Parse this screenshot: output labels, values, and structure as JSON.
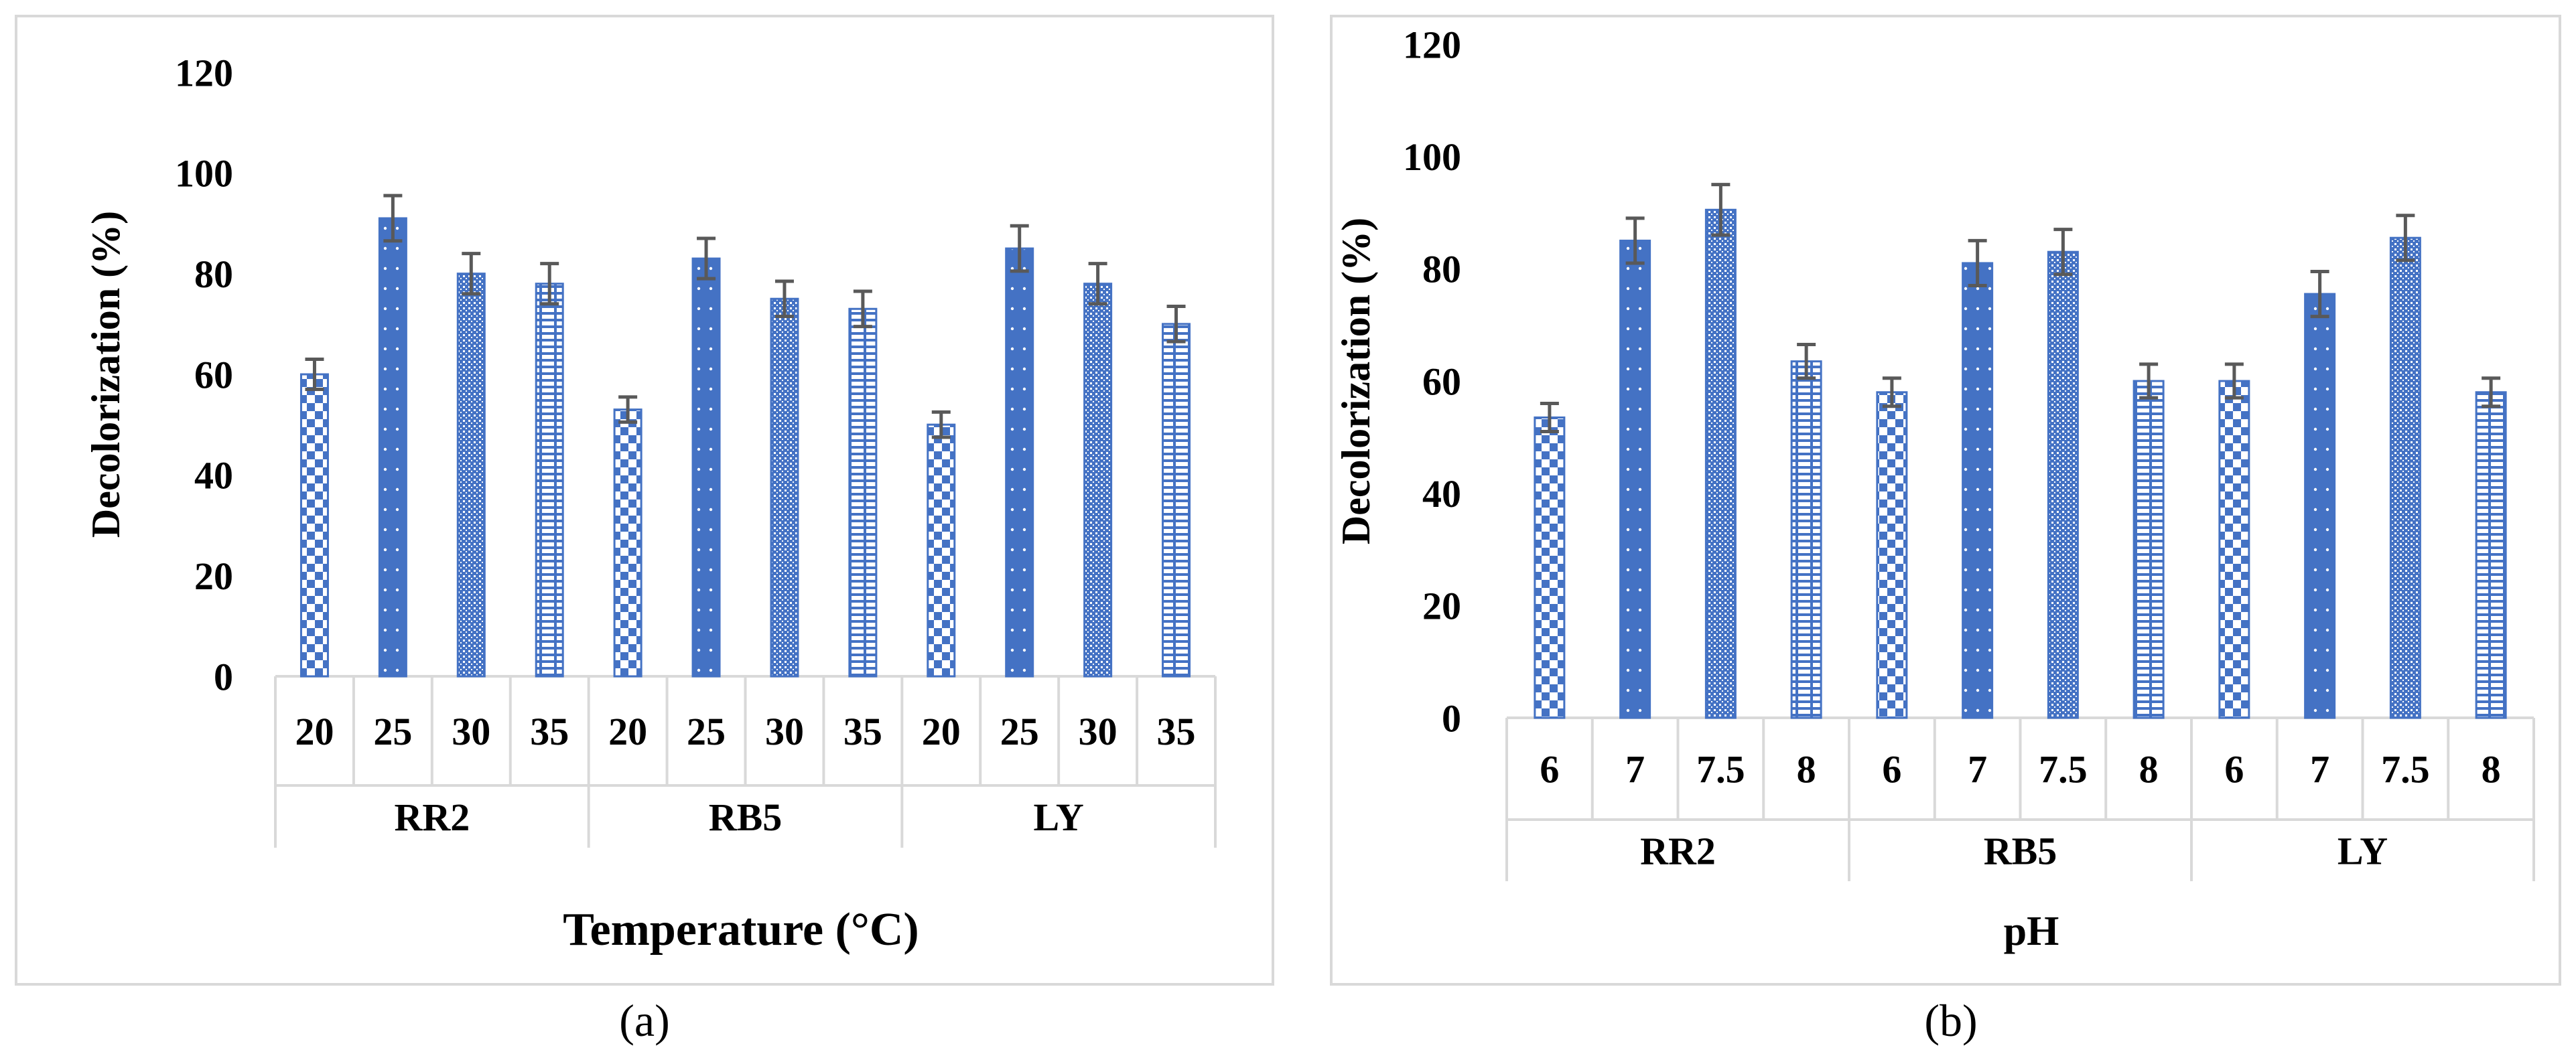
{
  "chart_data": [
    {
      "type": "bar",
      "panel_label": "(a)",
      "title": "",
      "xlabel": "Temperature (°C)",
      "ylabel": "Decolorization (%)",
      "ylim": [
        0,
        120
      ],
      "yticks": [
        0,
        20,
        40,
        60,
        80,
        100,
        120
      ],
      "grid": false,
      "groups": [
        {
          "name": "RR2",
          "categories": [
            "20",
            "25",
            "30",
            "35"
          ],
          "values": [
            60,
            91,
            80,
            78
          ],
          "errors": [
            3,
            4.5,
            4,
            4
          ]
        },
        {
          "name": "RB5",
          "categories": [
            "20",
            "25",
            "30",
            "35"
          ],
          "values": [
            53,
            83,
            75,
            73
          ],
          "errors": [
            2.5,
            4,
            3.5,
            3.5
          ]
        },
        {
          "name": "LY",
          "categories": [
            "20",
            "25",
            "30",
            "35"
          ],
          "values": [
            50,
            85,
            78,
            70
          ],
          "errors": [
            2.5,
            4.5,
            4,
            3.5
          ]
        }
      ],
      "patterns": [
        "checker",
        "dots",
        "mesh",
        "brick"
      ]
    },
    {
      "type": "bar",
      "panel_label": "(b)",
      "title": "",
      "xlabel": "pH",
      "ylabel": "Decolorization (%)",
      "ylim": [
        0,
        120
      ],
      "yticks": [
        0,
        20,
        40,
        60,
        80,
        100,
        120
      ],
      "grid": false,
      "groups": [
        {
          "name": "RR2",
          "categories": [
            "6",
            "7",
            "7.5",
            "8"
          ],
          "values": [
            53.5,
            85,
            90.5,
            63.5
          ],
          "errors": [
            2.5,
            4,
            4.5,
            3
          ]
        },
        {
          "name": "RB5",
          "categories": [
            "6",
            "7",
            "7.5",
            "8"
          ],
          "values": [
            58,
            81,
            83,
            60
          ],
          "errors": [
            2.5,
            4,
            4,
            3
          ]
        },
        {
          "name": "LY",
          "categories": [
            "6",
            "7",
            "7.5",
            "8"
          ],
          "values": [
            60,
            75.5,
            85.5,
            58
          ],
          "errors": [
            3,
            4,
            4,
            2.5
          ]
        }
      ],
      "patterns": [
        "checker",
        "dots",
        "mesh",
        "brick"
      ]
    }
  ],
  "colors": {
    "bar": "#4472c4",
    "error": "#595959",
    "axis": "#d9d9d9",
    "text": "#000000"
  }
}
